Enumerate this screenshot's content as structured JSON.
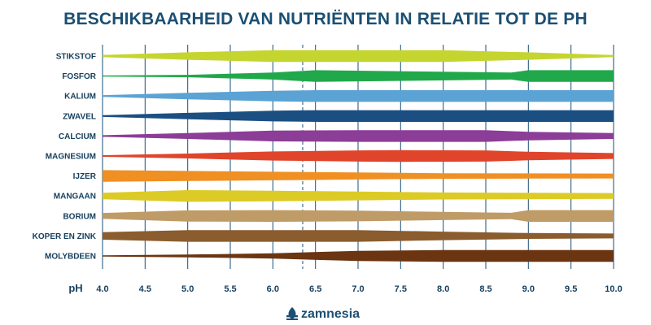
{
  "chart_data": {
    "type": "area",
    "title": "BESCHIKBAARHEID VAN NUTRIËNTEN IN RELATIE TOT DE PH",
    "xlabel": "pH",
    "ylabel": "",
    "xlim": [
      4.0,
      10.0
    ],
    "x_ticks": [
      "4.0",
      "4.5",
      "5.0",
      "5.5",
      "6.0",
      "6.5",
      "7.0",
      "7.5",
      "8.0",
      "8.5",
      "9.0",
      "9.5",
      "10.0"
    ],
    "reference_line": 6.35,
    "grid": true,
    "legend": "none",
    "value_note": "relatieve beschikbaarheid 0-1 (breedte van de band)",
    "series": [
      {
        "name": "STIKSTOF",
        "color": "#c5d52f",
        "x": [
          4.0,
          5.0,
          6.0,
          7.0,
          8.0,
          9.0,
          10.0
        ],
        "values": [
          0.1,
          0.6,
          1.0,
          1.0,
          1.0,
          0.6,
          0.08
        ]
      },
      {
        "name": "FOSFOR",
        "color": "#21a84a",
        "x": [
          4.0,
          5.0,
          6.0,
          6.5,
          8.8,
          9.0,
          10.0
        ],
        "values": [
          0.0,
          0.12,
          0.55,
          1.0,
          0.55,
          1.0,
          1.0
        ]
      },
      {
        "name": "KALIUM",
        "color": "#5aa3d4",
        "x": [
          4.0,
          5.0,
          6.0,
          6.5,
          10.0
        ],
        "values": [
          0.05,
          0.5,
          0.9,
          1.0,
          1.0
        ]
      },
      {
        "name": "ZWAVEL",
        "color": "#1b4f82",
        "x": [
          4.0,
          5.0,
          6.0,
          6.5,
          10.0
        ],
        "values": [
          0.05,
          0.5,
          0.9,
          1.0,
          1.0
        ]
      },
      {
        "name": "CALCIUM",
        "color": "#8c3d97",
        "x": [
          4.0,
          5.0,
          6.0,
          7.0,
          8.5,
          9.0,
          10.0
        ],
        "values": [
          0.05,
          0.45,
          0.9,
          1.0,
          1.0,
          0.7,
          0.45
        ]
      },
      {
        "name": "MAGNESIUM",
        "color": "#e0452b",
        "x": [
          4.0,
          5.0,
          6.0,
          7.0,
          7.5,
          8.5,
          9.0,
          10.0
        ],
        "values": [
          0.05,
          0.35,
          0.75,
          0.95,
          1.0,
          0.95,
          0.7,
          0.45
        ]
      },
      {
        "name": "IJZER",
        "color": "#f08f22",
        "x": [
          4.0,
          5.0,
          6.0,
          7.0,
          8.0,
          9.0,
          10.0
        ],
        "values": [
          1.0,
          0.85,
          0.7,
          0.55,
          0.42,
          0.38,
          0.35
        ]
      },
      {
        "name": "MANGAAN",
        "color": "#dccb26",
        "x": [
          4.0,
          5.0,
          6.0,
          7.0,
          8.0,
          9.0,
          10.0
        ],
        "values": [
          0.5,
          1.0,
          0.9,
          0.72,
          0.55,
          0.5,
          0.45
        ]
      },
      {
        "name": "BORIUM",
        "color": "#bf9b67",
        "x": [
          4.0,
          5.0,
          6.0,
          7.0,
          8.5,
          8.8,
          9.0,
          10.0
        ],
        "values": [
          0.45,
          0.95,
          1.0,
          0.9,
          0.55,
          0.5,
          1.0,
          1.0
        ]
      },
      {
        "name": "KOPER EN ZINK",
        "color": "#8a5c2e",
        "x": [
          4.0,
          5.0,
          6.0,
          7.0,
          8.0,
          9.0,
          10.0
        ],
        "values": [
          0.6,
          1.0,
          1.0,
          1.0,
          0.7,
          0.45,
          0.35
        ]
      },
      {
        "name": "MOLYBDEEN",
        "color": "#6b3512",
        "x": [
          4.0,
          5.0,
          6.0,
          7.0,
          8.0,
          9.0,
          10.0
        ],
        "values": [
          0.0,
          0.15,
          0.4,
          0.85,
          1.0,
          1.0,
          1.0
        ]
      }
    ]
  },
  "brand": {
    "name": "zamnesia",
    "icon": "leaf-logo-icon"
  }
}
